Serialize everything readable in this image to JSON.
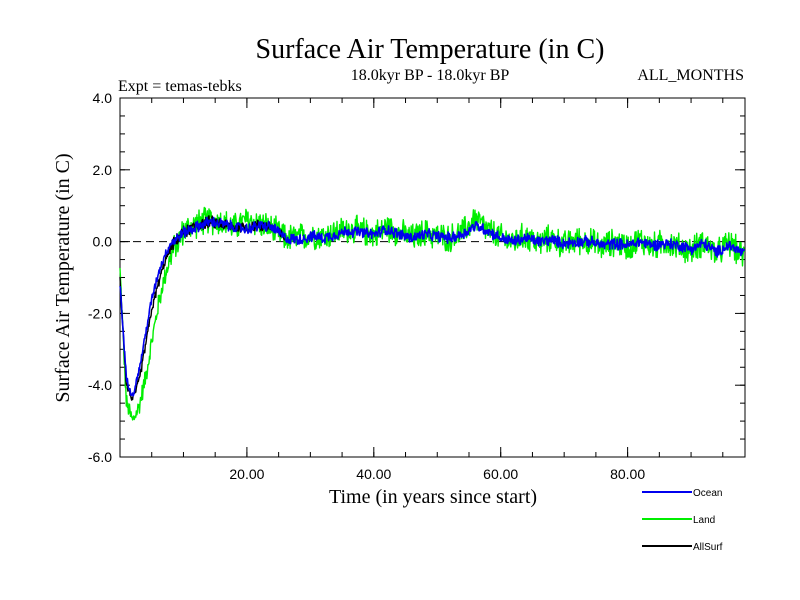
{
  "chart_data": {
    "type": "line",
    "title": "Surface Air Temperature (in C)",
    "subtitle_left": "Expt = temas-tebks",
    "subtitle_center": "18.0kyr BP - 18.0kyr BP",
    "subtitle_right": "ALL_MONTHS",
    "xlabel": "Time (in years since start)",
    "ylabel": "Surface Air Temperature (in C)",
    "xlim": [
      0,
      98.5
    ],
    "ylim": [
      -6.0,
      4.0
    ],
    "x_ticks": [
      20,
      40,
      60,
      80
    ],
    "x_tick_labels": [
      "20.00",
      "40.00",
      "60.00",
      "80.00"
    ],
    "y_ticks": [
      -6,
      -4,
      -2,
      0,
      2,
      4
    ],
    "y_tick_labels": [
      "-6.0",
      "-4.0",
      "-2.0",
      "0.0",
      "2.0",
      "4.0"
    ],
    "reference_line": {
      "y": 0.0,
      "style": "dashed"
    },
    "legend_position": "bottom-right",
    "series": [
      {
        "name": "Ocean",
        "color": "#0000ee",
        "x": [
          0,
          1,
          2,
          3,
          4,
          5,
          6,
          7,
          8,
          10,
          12,
          14,
          16,
          18,
          20,
          22,
          24,
          26,
          28,
          30,
          32,
          34,
          36,
          38,
          40,
          42,
          44,
          46,
          48,
          50,
          52,
          54,
          56,
          58,
          60,
          62,
          64,
          66,
          68,
          70,
          72,
          74,
          76,
          78,
          80,
          82,
          84,
          86,
          88,
          90,
          92,
          94,
          96,
          98.5
        ],
        "values": [
          -1.2,
          -3.8,
          -4.3,
          -3.6,
          -2.6,
          -1.6,
          -0.9,
          -0.4,
          -0.05,
          0.25,
          0.4,
          0.55,
          0.5,
          0.4,
          0.35,
          0.45,
          0.4,
          0.1,
          0.05,
          0.15,
          0.1,
          0.2,
          0.3,
          0.25,
          0.2,
          0.35,
          0.2,
          0.1,
          0.2,
          0.15,
          0.1,
          0.2,
          0.45,
          0.3,
          0.1,
          0.0,
          0.1,
          0.0,
          0.05,
          -0.05,
          0.0,
          0.0,
          -0.1,
          -0.05,
          -0.1,
          0.0,
          -0.1,
          -0.05,
          -0.1,
          -0.2,
          -0.05,
          -0.3,
          -0.1,
          -0.35
        ]
      },
      {
        "name": "Land",
        "color": "#00ee00",
        "x": [
          0,
          1,
          2,
          3,
          4,
          5,
          6,
          7,
          8,
          10,
          12,
          14,
          16,
          18,
          20,
          22,
          24,
          26,
          28,
          30,
          32,
          34,
          36,
          38,
          40,
          42,
          44,
          46,
          48,
          50,
          52,
          54,
          56,
          58,
          60,
          62,
          64,
          66,
          68,
          70,
          72,
          74,
          76,
          78,
          80,
          82,
          84,
          86,
          88,
          90,
          92,
          94,
          96,
          98.5
        ],
        "values": [
          -0.8,
          -4.5,
          -5.0,
          -4.6,
          -3.8,
          -2.8,
          -1.8,
          -1.0,
          -0.4,
          0.3,
          0.5,
          0.6,
          0.55,
          0.4,
          0.6,
          0.5,
          0.35,
          0.1,
          0.1,
          0.2,
          0.15,
          0.25,
          0.35,
          0.3,
          0.2,
          0.4,
          0.25,
          0.1,
          0.25,
          0.15,
          0.1,
          0.25,
          0.65,
          0.3,
          0.1,
          0.0,
          0.15,
          -0.05,
          0.1,
          -0.1,
          0.05,
          0.0,
          -0.15,
          0.0,
          -0.15,
          0.05,
          -0.15,
          0.0,
          -0.15,
          -0.25,
          0.0,
          -0.35,
          -0.05,
          -0.45
        ]
      },
      {
        "name": "AllSurf",
        "color": "#000000",
        "x": [
          0,
          1,
          2,
          3,
          4,
          5,
          6,
          7,
          8,
          10,
          12,
          14,
          16,
          18,
          20,
          22,
          24,
          26
        ],
        "values": [
          -1.0,
          -4.0,
          -4.4,
          -3.9,
          -2.9,
          -1.9,
          -1.2,
          -0.6,
          -0.15,
          0.25,
          0.45,
          0.55,
          0.5,
          0.4,
          0.4,
          0.45,
          0.4,
          0.1
        ]
      }
    ]
  }
}
